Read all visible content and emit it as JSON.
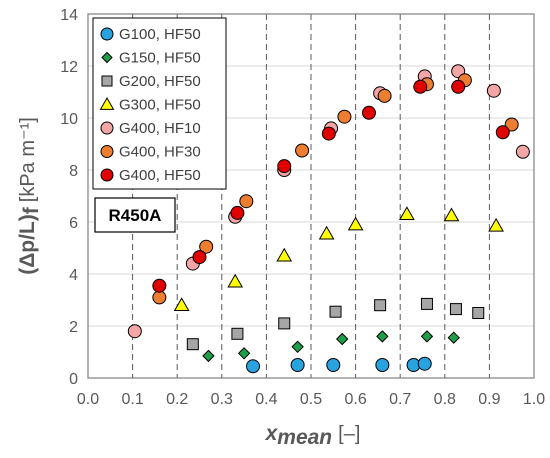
{
  "chart_data": {
    "type": "scatter",
    "xlabel": "x",
    "xlabel_sub": "mean",
    "xlabel_unit": "[–]",
    "ylabel": "(Δp/L)",
    "ylabel_sub": "f",
    "ylabel_unit": "[kPa m⁻¹]",
    "xlim": [
      0.0,
      1.0
    ],
    "ylim": [
      0,
      14
    ],
    "xticks": [
      "0.0",
      "0.1",
      "0.2",
      "0.3",
      "0.4",
      "0.5",
      "0.6",
      "0.7",
      "0.8",
      "0.9",
      "1.0"
    ],
    "yticks": [
      "0",
      "2",
      "4",
      "6",
      "8",
      "10",
      "12",
      "14"
    ],
    "grid": "horizontal solid, vertical dashed",
    "legend_position": "top-left",
    "annotation": "R450A",
    "series": [
      {
        "name": "G100, HF50",
        "marker": "circle",
        "color": "#29a3e0",
        "x": [
          0.37,
          0.47,
          0.55,
          0.66,
          0.73,
          0.755
        ],
        "y": [
          0.45,
          0.5,
          0.5,
          0.5,
          0.5,
          0.55
        ]
      },
      {
        "name": "G150, HF50",
        "marker": "diamond",
        "color": "#1f9e4a",
        "x": [
          0.27,
          0.35,
          0.47,
          0.57,
          0.66,
          0.76,
          0.82
        ],
        "y": [
          0.85,
          0.95,
          1.2,
          1.5,
          1.6,
          1.6,
          1.55
        ]
      },
      {
        "name": "G200, HF50",
        "marker": "square",
        "color": "#a6a6a6",
        "x": [
          0.235,
          0.335,
          0.44,
          0.555,
          0.655,
          0.76,
          0.825,
          0.875
        ],
        "y": [
          1.3,
          1.7,
          2.1,
          2.55,
          2.8,
          2.85,
          2.65,
          2.5
        ]
      },
      {
        "name": "G300, HF50",
        "marker": "triangle",
        "color": "#ffff00",
        "x": [
          0.21,
          0.33,
          0.44,
          0.535,
          0.6,
          0.715,
          0.815,
          0.915
        ],
        "y": [
          2.8,
          3.7,
          4.7,
          5.55,
          5.9,
          6.3,
          6.25,
          5.85
        ]
      },
      {
        "name": "G400, HF10",
        "marker": "circle",
        "color": "#f4a5a5",
        "x": [
          0.105,
          0.235,
          0.33,
          0.44,
          0.545,
          0.655,
          0.755,
          0.83,
          0.91,
          0.975
        ],
        "y": [
          1.8,
          4.4,
          6.2,
          8.0,
          9.6,
          10.95,
          11.6,
          11.8,
          11.05,
          8.7
        ]
      },
      {
        "name": "G400, HF30",
        "marker": "circle",
        "color": "#ed7d31",
        "x": [
          0.16,
          0.265,
          0.355,
          0.48,
          0.575,
          0.665,
          0.76,
          0.845,
          0.95
        ],
        "y": [
          3.1,
          5.05,
          6.8,
          8.75,
          10.05,
          10.85,
          11.3,
          11.45,
          9.75
        ]
      },
      {
        "name": "G400, HF50",
        "marker": "circle",
        "color": "#e00000",
        "x": [
          0.16,
          0.25,
          0.335,
          0.44,
          0.54,
          0.63,
          0.745,
          0.83,
          0.93
        ],
        "y": [
          3.55,
          4.65,
          6.35,
          8.15,
          9.4,
          10.2,
          11.2,
          11.2,
          9.45
        ]
      }
    ]
  }
}
